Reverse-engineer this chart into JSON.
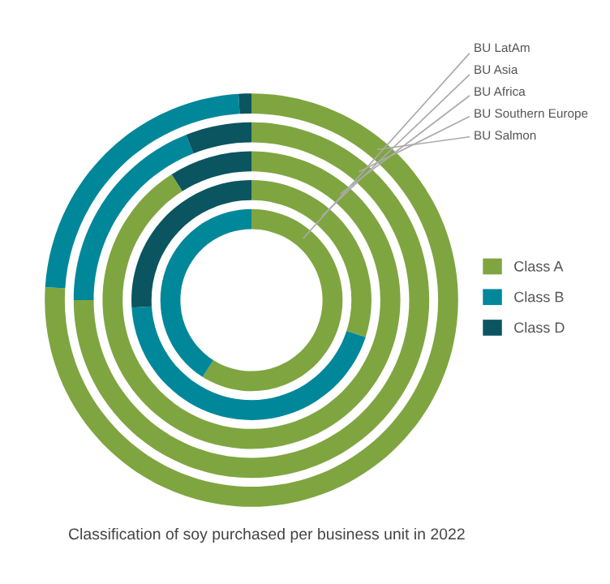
{
  "chart_data": {
    "type": "donut",
    "title": "Classification of soy purchased per business unit in 2022",
    "categories": [
      "Class A",
      "Class B",
      "Class D"
    ],
    "series": [
      {
        "name": "BU LatAm",
        "values": [
          59,
          41,
          0
        ]
      },
      {
        "name": "BU Asia",
        "values": [
          30,
          44,
          26
        ]
      },
      {
        "name": "BU Africa",
        "values": [
          91,
          0,
          9
        ]
      },
      {
        "name": "BU Southern Europe",
        "values": [
          75,
          19,
          6
        ]
      },
      {
        "name": "BU Salmon",
        "values": [
          76,
          23,
          1
        ]
      }
    ],
    "colors": [
      "#7fa540",
      "#00879a",
      "#0b5560"
    ],
    "legend": "right"
  }
}
